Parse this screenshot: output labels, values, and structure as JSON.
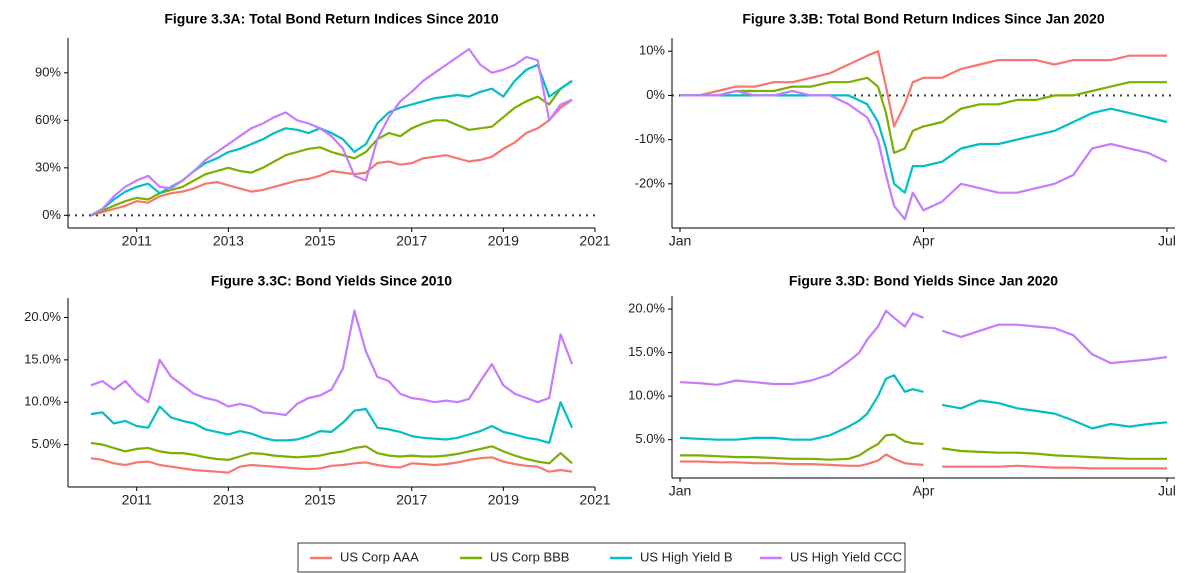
{
  "chart_data": [
    {
      "type": "line",
      "title": "Figure 3.3A: Total Bond Return Indices Since 2010",
      "x": [
        2010,
        2010.25,
        2010.5,
        2010.75,
        2011,
        2011.25,
        2011.5,
        2011.75,
        2012,
        2012.25,
        2012.5,
        2012.75,
        2013,
        2013.25,
        2013.5,
        2013.75,
        2014,
        2014.25,
        2014.5,
        2014.75,
        2015,
        2015.25,
        2015.5,
        2015.75,
        2016,
        2016.25,
        2016.5,
        2016.75,
        2017,
        2017.25,
        2017.5,
        2017.75,
        2018,
        2018.25,
        2018.5,
        2018.75,
        2019,
        2019.25,
        2019.5,
        2019.75,
        2020,
        2020.25,
        2020.5
      ],
      "series": [
        {
          "values": [
            0,
            2,
            4,
            6,
            9,
            8,
            12,
            14,
            15,
            17,
            20,
            21,
            19,
            17,
            15,
            16,
            18,
            20,
            22,
            23,
            25,
            28,
            27,
            26,
            27,
            33,
            34,
            32,
            33,
            36,
            37,
            38,
            36,
            34,
            35,
            37,
            42,
            46,
            52,
            55,
            60,
            68,
            73
          ]
        },
        {
          "values": [
            0,
            3,
            6,
            9,
            11,
            10,
            14,
            16,
            18,
            22,
            26,
            28,
            30,
            28,
            27,
            30,
            34,
            38,
            40,
            42,
            43,
            40,
            38,
            36,
            40,
            48,
            52,
            50,
            55,
            58,
            60,
            60,
            57,
            54,
            55,
            56,
            62,
            68,
            72,
            75,
            70,
            80,
            85
          ]
        },
        {
          "values": [
            0,
            4,
            10,
            15,
            18,
            20,
            14,
            18,
            22,
            28,
            33,
            36,
            40,
            42,
            45,
            48,
            52,
            55,
            54,
            52,
            55,
            52,
            48,
            40,
            45,
            58,
            65,
            68,
            70,
            72,
            74,
            75,
            76,
            75,
            78,
            80,
            75,
            85,
            92,
            95,
            75,
            80,
            85
          ]
        },
        {
          "values": [
            0,
            4,
            12,
            18,
            22,
            25,
            18,
            17,
            22,
            28,
            35,
            40,
            45,
            50,
            55,
            58,
            62,
            65,
            60,
            58,
            55,
            50,
            42,
            25,
            22,
            48,
            62,
            72,
            78,
            85,
            90,
            95,
            100,
            105,
            95,
            90,
            92,
            95,
            100,
            98,
            60,
            70,
            73
          ]
        }
      ],
      "xlim": [
        2009.5,
        2021
      ],
      "xticks": [
        2011,
        2013,
        2015,
        2017,
        2019,
        2021
      ],
      "ylim": [
        -8,
        112
      ],
      "yticks": [
        {
          "value": 0,
          "label": "0%"
        },
        {
          "value": 30,
          "label": "30%"
        },
        {
          "value": 60,
          "label": "60%"
        },
        {
          "value": 90,
          "label": "90%"
        }
      ],
      "hline": 0
    },
    {
      "type": "line",
      "title": "Figure 3.3B: Total Bond Return Indices Since Jan 2020",
      "x": [
        0,
        7,
        14,
        21,
        28,
        35,
        42,
        49,
        56,
        63,
        70,
        74,
        77,
        80,
        84,
        87,
        91,
        98,
        105,
        112,
        119,
        126,
        133,
        140,
        147,
        154,
        161,
        168,
        175,
        182
      ],
      "series": [
        {
          "values": [
            0,
            0,
            1,
            2,
            2,
            3,
            3,
            4,
            5,
            7,
            9,
            10,
            2,
            -7,
            -2,
            3,
            4,
            4,
            6,
            7,
            8,
            8,
            8,
            7,
            8,
            8,
            8,
            9,
            9,
            9
          ]
        },
        {
          "values": [
            0,
            0,
            0,
            1,
            1,
            1,
            2,
            2,
            3,
            3,
            4,
            2,
            -4,
            -13,
            -12,
            -8,
            -7,
            -6,
            -3,
            -2,
            -2,
            -1,
            -1,
            0,
            0,
            1,
            2,
            3,
            3,
            3
          ]
        },
        {
          "values": [
            0,
            0,
            0,
            0,
            0,
            0,
            0,
            0,
            0,
            0,
            -2,
            -6,
            -12,
            -20,
            -22,
            -16,
            -16,
            -15,
            -12,
            -11,
            -11,
            -10,
            -9,
            -8,
            -6,
            -4,
            -3,
            -4,
            -5,
            -6
          ]
        },
        {
          "values": [
            0,
            0,
            0,
            1,
            0,
            0,
            1,
            0,
            0,
            -2,
            -5,
            -10,
            -18,
            -25,
            -28,
            -22,
            -26,
            -24,
            -20,
            -21,
            -22,
            -22,
            -21,
            -20,
            -18,
            -12,
            -11,
            -12,
            -13,
            -15
          ]
        }
      ],
      "xlim": [
        -3,
        185
      ],
      "xticks": [
        {
          "value": 0,
          "label": "Jan"
        },
        {
          "value": 91,
          "label": "Apr"
        },
        {
          "value": 182,
          "label": "Jul"
        }
      ],
      "ylim": [
        -30,
        13
      ],
      "yticks": [
        {
          "value": -20,
          "label": "-20%"
        },
        {
          "value": -10,
          "label": "-10%"
        },
        {
          "value": 0,
          "label": "0%"
        },
        {
          "value": 10,
          "label": "10%"
        }
      ],
      "hline": 0
    },
    {
      "type": "line",
      "title": "Figure 3.3C: Bond Yields Since 2010",
      "x": [
        2010,
        2010.25,
        2010.5,
        2010.75,
        2011,
        2011.25,
        2011.5,
        2011.75,
        2012,
        2012.25,
        2012.5,
        2012.75,
        2013,
        2013.25,
        2013.5,
        2013.75,
        2014,
        2014.25,
        2014.5,
        2014.75,
        2015,
        2015.25,
        2015.5,
        2015.75,
        2016,
        2016.25,
        2016.5,
        2016.75,
        2017,
        2017.25,
        2017.5,
        2017.75,
        2018,
        2018.25,
        2018.5,
        2018.75,
        2019,
        2019.25,
        2019.5,
        2019.75,
        2020,
        2020.25,
        2020.5
      ],
      "series": [
        {
          "values": [
            3.4,
            3.2,
            2.8,
            2.6,
            2.9,
            3.0,
            2.6,
            2.4,
            2.2,
            2.0,
            1.9,
            1.8,
            1.7,
            2.4,
            2.6,
            2.5,
            2.4,
            2.3,
            2.2,
            2.1,
            2.2,
            2.5,
            2.6,
            2.8,
            2.9,
            2.6,
            2.4,
            2.3,
            2.8,
            2.7,
            2.6,
            2.7,
            2.9,
            3.2,
            3.4,
            3.5,
            3.0,
            2.7,
            2.5,
            2.4,
            1.8,
            2.0,
            1.8
          ]
        },
        {
          "values": [
            5.2,
            5.0,
            4.6,
            4.2,
            4.5,
            4.6,
            4.2,
            4.0,
            4.0,
            3.8,
            3.5,
            3.3,
            3.2,
            3.6,
            4.0,
            3.9,
            3.7,
            3.6,
            3.5,
            3.6,
            3.7,
            4.0,
            4.2,
            4.6,
            4.8,
            4.0,
            3.7,
            3.6,
            3.7,
            3.6,
            3.6,
            3.7,
            3.9,
            4.2,
            4.5,
            4.8,
            4.2,
            3.7,
            3.3,
            3.0,
            2.8,
            4.0,
            2.8
          ]
        },
        {
          "values": [
            8.6,
            8.8,
            7.5,
            7.8,
            7.2,
            7.0,
            9.5,
            8.2,
            7.8,
            7.5,
            6.8,
            6.5,
            6.2,
            6.6,
            6.3,
            5.8,
            5.5,
            5.5,
            5.6,
            6.0,
            6.6,
            6.5,
            7.6,
            9.0,
            9.2,
            7.0,
            6.8,
            6.5,
            6.0,
            5.8,
            5.7,
            5.6,
            5.8,
            6.2,
            6.6,
            7.2,
            6.5,
            6.2,
            5.8,
            5.6,
            5.2,
            10.0,
            7.0
          ]
        },
        {
          "values": [
            12.0,
            12.5,
            11.5,
            12.5,
            11.0,
            10.0,
            15.0,
            13.0,
            12.0,
            11.0,
            10.5,
            10.2,
            9.5,
            9.8,
            9.5,
            8.8,
            8.7,
            8.5,
            9.8,
            10.5,
            10.8,
            11.5,
            14.0,
            20.8,
            16.0,
            13.0,
            12.5,
            11.0,
            10.5,
            10.3,
            10.0,
            10.2,
            10.0,
            10.4,
            12.5,
            14.5,
            12.0,
            11.0,
            10.5,
            10.0,
            10.5,
            18.0,
            14.5
          ]
        }
      ],
      "xlim": [
        2009.5,
        2021
      ],
      "xticks": [
        2011,
        2013,
        2015,
        2017,
        2019,
        2021
      ],
      "ylim": [
        0,
        22.3
      ],
      "yticks": [
        {
          "value": 5,
          "label": "5.0%"
        },
        {
          "value": 10,
          "label": "10.0%"
        },
        {
          "value": 15,
          "label": "15.0%"
        },
        {
          "value": 20,
          "label": "20.0%"
        }
      ]
    },
    {
      "type": "line",
      "title": "Figure 3.3D: Bond Yields Since Jan 2020",
      "x": [
        0,
        7,
        14,
        21,
        28,
        35,
        42,
        49,
        56,
        63,
        67,
        70,
        74,
        77,
        80,
        84,
        87,
        91,
        94,
        98,
        105,
        112,
        119,
        126,
        133,
        140,
        147,
        154,
        161,
        168,
        175,
        182
      ],
      "series": [
        {
          "values": [
            2.5,
            2.5,
            2.4,
            2.4,
            2.3,
            2.3,
            2.2,
            2.2,
            2.1,
            2.0,
            2.0,
            2.2,
            2.6,
            3.3,
            2.8,
            2.3,
            2.2,
            2.1,
            null,
            1.9,
            1.9,
            1.9,
            1.9,
            2.0,
            1.9,
            1.8,
            1.8,
            1.7,
            1.7,
            1.7,
            1.7,
            1.7
          ]
        },
        {
          "values": [
            3.2,
            3.2,
            3.1,
            3.0,
            3.0,
            2.9,
            2.8,
            2.8,
            2.7,
            2.8,
            3.2,
            3.8,
            4.5,
            5.5,
            5.6,
            4.8,
            4.6,
            4.5,
            null,
            4.0,
            3.7,
            3.6,
            3.5,
            3.5,
            3.4,
            3.2,
            3.1,
            3.0,
            2.9,
            2.8,
            2.8,
            2.8
          ]
        },
        {
          "values": [
            5.2,
            5.1,
            5.0,
            5.0,
            5.2,
            5.2,
            5.0,
            5.0,
            5.5,
            6.5,
            7.2,
            8.0,
            10.0,
            12.0,
            12.4,
            10.5,
            10.8,
            10.5,
            null,
            9.0,
            8.6,
            9.5,
            9.2,
            8.6,
            8.3,
            8.0,
            7.2,
            6.3,
            6.8,
            6.5,
            6.8,
            7.0
          ]
        },
        {
          "values": [
            11.6,
            11.5,
            11.3,
            11.8,
            11.6,
            11.4,
            11.4,
            11.8,
            12.5,
            14.0,
            15.0,
            16.5,
            18.0,
            19.8,
            19.0,
            18.0,
            19.5,
            19.0,
            null,
            17.5,
            16.8,
            17.5,
            18.2,
            18.2,
            18.0,
            17.8,
            17.0,
            14.8,
            13.8,
            14.0,
            14.2,
            14.5
          ]
        }
      ],
      "xlim": [
        -3,
        185
      ],
      "xticks": [
        {
          "value": 0,
          "label": "Jan"
        },
        {
          "value": 91,
          "label": "Apr"
        },
        {
          "value": 182,
          "label": "Jul"
        }
      ],
      "ylim": [
        0.6,
        21.5
      ],
      "yticks": [
        {
          "value": 5,
          "label": "5.0%"
        },
        {
          "value": 10,
          "label": "10.0%"
        },
        {
          "value": 15,
          "label": "15.0%"
        },
        {
          "value": 20,
          "label": "20.0%"
        }
      ]
    }
  ],
  "legend": [
    {
      "name": "US Corp AAA",
      "color": "#F8766D"
    },
    {
      "name": "US Corp BBB",
      "color": "#7CAE00"
    },
    {
      "name": "US High Yield B",
      "color": "#00BFC4"
    },
    {
      "name": "US High Yield CCC",
      "color": "#C77CFF"
    }
  ]
}
